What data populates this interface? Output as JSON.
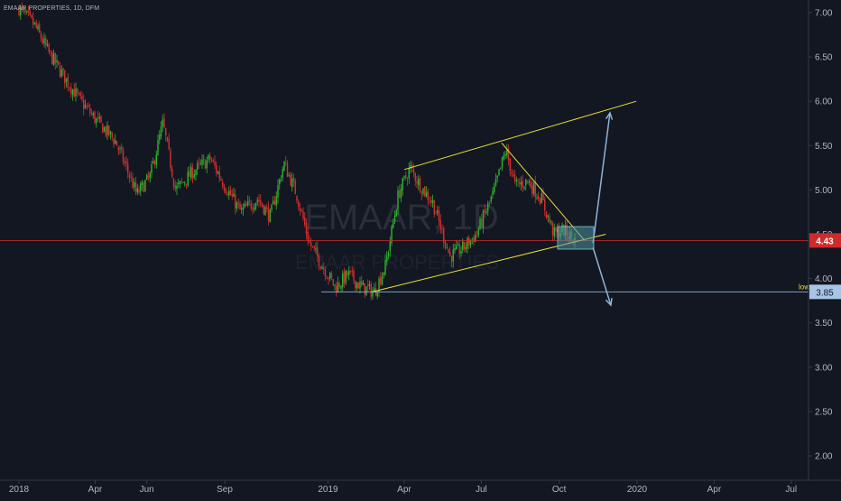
{
  "header": {
    "symbol_label": "EMAAR PROPERTIES, 1D, DFM"
  },
  "watermark": {
    "ticker": "EMAAR, 1D",
    "name": "EMAAR PROPERTIES"
  },
  "colors": {
    "background": "#131722",
    "up": "#26a69a",
    "up_candle": "#2fb52f",
    "down": "#d62f2f",
    "trendline": "#e8e03a",
    "arrow": "#8fb3d6",
    "price_line": "#d12a2a",
    "low_line": "#8fb3d6",
    "axis_text": "#b2b5be"
  },
  "chart_data": {
    "type": "candlestick",
    "title": "",
    "ylabel": "",
    "xlabel": "",
    "ylim": [
      1.75,
      7.1
    ],
    "y_ticks": [
      "7.00",
      "6.50",
      "6.00",
      "5.50",
      "5.00",
      "4.50",
      "4.00",
      "3.50",
      "3.00",
      "2.50",
      "2.00"
    ],
    "x_ticks": [
      "2018",
      "Apr",
      "Jun",
      "Sep",
      "2019",
      "Apr",
      "Jul",
      "Oct",
      "2020",
      "Apr",
      "Jul"
    ],
    "grid": false,
    "price_path": [
      {
        "x": "2018-01-01",
        "y": 7.05
      },
      {
        "x": "2018-01-20",
        "y": 6.85
      },
      {
        "x": "2018-02-05",
        "y": 6.55
      },
      {
        "x": "2018-02-25",
        "y": 6.25
      },
      {
        "x": "2018-03-15",
        "y": 6.0
      },
      {
        "x": "2018-04-01",
        "y": 5.8
      },
      {
        "x": "2018-04-25",
        "y": 5.55
      },
      {
        "x": "2018-05-10",
        "y": 5.2
      },
      {
        "x": "2018-05-20",
        "y": 4.95
      },
      {
        "x": "2018-06-05",
        "y": 5.15
      },
      {
        "x": "2018-06-20",
        "y": 5.75
      },
      {
        "x": "2018-07-05",
        "y": 5.0
      },
      {
        "x": "2018-07-25",
        "y": 5.2
      },
      {
        "x": "2018-08-15",
        "y": 5.35
      },
      {
        "x": "2018-09-01",
        "y": 5.05
      },
      {
        "x": "2018-09-20",
        "y": 4.75
      },
      {
        "x": "2018-10-10",
        "y": 4.9
      },
      {
        "x": "2018-10-25",
        "y": 4.7
      },
      {
        "x": "2018-11-10",
        "y": 5.3
      },
      {
        "x": "2018-11-25",
        "y": 4.95
      },
      {
        "x": "2018-12-10",
        "y": 4.4
      },
      {
        "x": "2018-12-25",
        "y": 4.15
      },
      {
        "x": "2019-01-10",
        "y": 3.9
      },
      {
        "x": "2019-01-25",
        "y": 4.05
      },
      {
        "x": "2019-02-10",
        "y": 3.9
      },
      {
        "x": "2019-02-25",
        "y": 3.85
      },
      {
        "x": "2019-03-10",
        "y": 4.15
      },
      {
        "x": "2019-03-25",
        "y": 4.95
      },
      {
        "x": "2019-04-08",
        "y": 5.25
      },
      {
        "x": "2019-04-20",
        "y": 5.05
      },
      {
        "x": "2019-05-05",
        "y": 4.85
      },
      {
        "x": "2019-05-25",
        "y": 4.25
      },
      {
        "x": "2019-06-10",
        "y": 4.35
      },
      {
        "x": "2019-06-25",
        "y": 4.5
      },
      {
        "x": "2019-07-15",
        "y": 4.95
      },
      {
        "x": "2019-07-30",
        "y": 5.45
      },
      {
        "x": "2019-08-10",
        "y": 5.05
      },
      {
        "x": "2019-08-25",
        "y": 5.1
      },
      {
        "x": "2019-09-10",
        "y": 4.9
      },
      {
        "x": "2019-09-25",
        "y": 4.5
      },
      {
        "x": "2019-10-05",
        "y": 4.55
      },
      {
        "x": "2019-10-20",
        "y": 4.43
      }
    ],
    "current_price": {
      "value": 4.43,
      "label": "4.43"
    },
    "low_level": {
      "value": 3.85,
      "label": "3.85",
      "tag": "low"
    },
    "trendlines": [
      {
        "from": {
          "x": "2019-02-22",
          "y": 3.85
        },
        "to": {
          "x": "2019-11-25",
          "y": 4.5
        }
      },
      {
        "from": {
          "x": "2019-04-01",
          "y": 5.23
        },
        "to": {
          "x": "2019-12-31",
          "y": 6.0
        }
      },
      {
        "from": {
          "x": "2019-07-25",
          "y": 5.53
        },
        "to": {
          "x": "2019-10-31",
          "y": 4.43
        }
      }
    ],
    "arrows": [
      {
        "from": {
          "x": "2019-11-10",
          "y": 4.4
        },
        "to": {
          "x": "2019-11-30",
          "y": 5.87
        }
      },
      {
        "from": {
          "x": "2019-11-10",
          "y": 4.35
        },
        "to": {
          "x": "2019-12-01",
          "y": 3.7
        }
      }
    ]
  }
}
